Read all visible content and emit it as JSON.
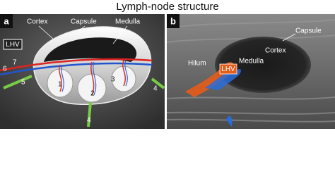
{
  "title": "Lymph-node structure",
  "panels": [
    {
      "label": "a",
      "annotations": [
        "Cortex",
        "Capsule",
        "Medulla",
        "LHV"
      ],
      "numbers": [
        "1",
        "2",
        "3",
        "4",
        "4",
        "5",
        "6",
        "7"
      ]
    },
    {
      "label": "b",
      "annotations": [
        "Capsule",
        "Cortex",
        "Hilum",
        "LHV",
        "Medulla"
      ]
    }
  ]
}
